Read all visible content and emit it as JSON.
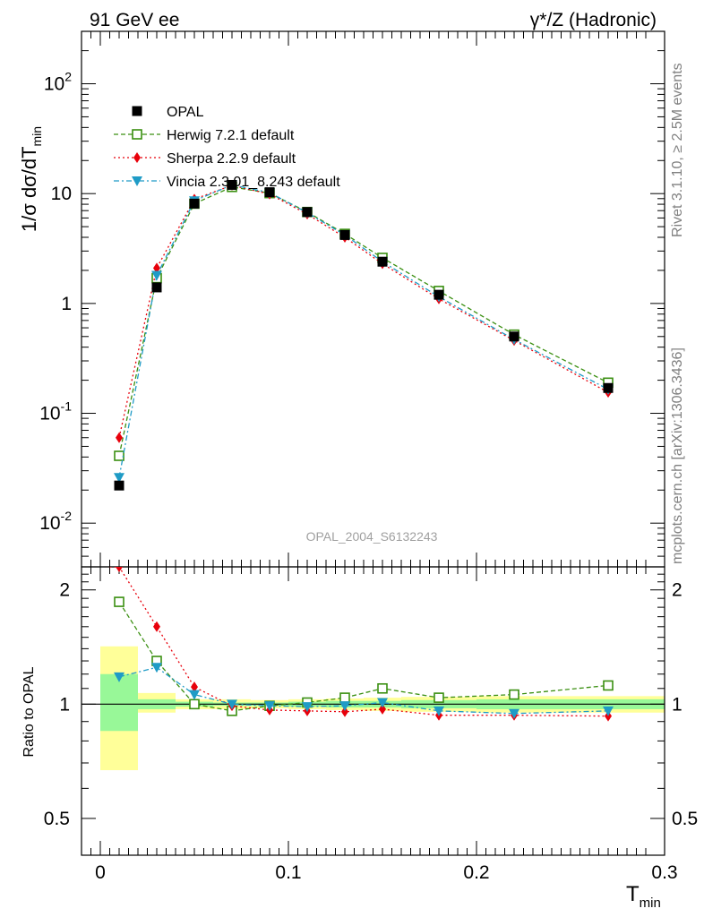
{
  "header": {
    "left": "91 GeV ee",
    "right": "γ*/Z (Hadronic)"
  },
  "side": {
    "rivet": "Rivet 3.1.10, ≥ 2.5M events",
    "mcplots": "mcplots.cern.ch [arXiv:1306.3436]"
  },
  "watermark": "OPAL_2004_S6132243",
  "axes": {
    "ylabel_main": "1/σ dσ/dT",
    "ylabel_main_sub": "min",
    "ylabel_ratio": "Ratio to OPAL",
    "xlabel": "T",
    "xlabel_sub": "min"
  },
  "legend": [
    {
      "label": "OPAL",
      "color": "#000000",
      "marker": "square-filled",
      "line": "none"
    },
    {
      "label": "Herwig 7.2.1 default",
      "color": "#3a8f11",
      "marker": "square-open",
      "line": "dashed"
    },
    {
      "label": "Sherpa 2.2.9 default",
      "color": "#e8000b",
      "marker": "diamond",
      "line": "dotted"
    },
    {
      "label": "Vincia 2.3.01_8.243 default",
      "color": "#1f9bc6",
      "marker": "triangle-down",
      "line": "dashdot"
    }
  ],
  "chart_data": [
    {
      "type": "scatter",
      "panel": "main",
      "xlim": [
        -0.01,
        0.3
      ],
      "ylim": [
        0.004,
        300
      ],
      "log_y": true,
      "x_ticks": [
        "0",
        "0.1",
        "0.2",
        "0.3"
      ],
      "y_ticks": [
        "10^-2",
        "10^-1",
        "1",
        "10",
        "10^2"
      ],
      "series": [
        {
          "name": "OPAL",
          "x": [
            0.01,
            0.03,
            0.05,
            0.07,
            0.09,
            0.11,
            0.13,
            0.15,
            0.18,
            0.22,
            0.27
          ],
          "values": [
            0.022,
            1.4,
            8.1,
            12.0,
            10.3,
            6.8,
            4.2,
            2.4,
            1.2,
            0.5,
            0.17
          ]
        },
        {
          "name": "Herwig 7.2.1 default",
          "x": [
            0.01,
            0.03,
            0.05,
            0.07,
            0.09,
            0.11,
            0.13,
            0.15,
            0.18,
            0.22,
            0.27
          ],
          "values": [
            0.041,
            1.7,
            8.1,
            11.5,
            10.1,
            6.8,
            4.3,
            2.6,
            1.3,
            0.52,
            0.19
          ]
        },
        {
          "name": "Sherpa 2.2.9 default",
          "x": [
            0.01,
            0.03,
            0.05,
            0.07,
            0.09,
            0.11,
            0.13,
            0.15,
            0.18,
            0.22,
            0.27
          ],
          "values": [
            0.06,
            2.1,
            8.9,
            11.9,
            9.9,
            6.5,
            4.0,
            2.3,
            1.1,
            0.46,
            0.155
          ]
        },
        {
          "name": "Vincia 2.3.01_8.243 default",
          "x": [
            0.01,
            0.03,
            0.05,
            0.07,
            0.09,
            0.11,
            0.13,
            0.15,
            0.18,
            0.22,
            0.27
          ],
          "values": [
            0.026,
            1.8,
            8.6,
            12.0,
            10.2,
            6.7,
            4.2,
            2.4,
            1.15,
            0.47,
            0.165
          ]
        }
      ]
    },
    {
      "type": "scatter",
      "panel": "ratio",
      "xlim": [
        -0.01,
        0.3
      ],
      "ylim": [
        0.4,
        2.3
      ],
      "log_y": true,
      "y_ticks": [
        "0.5",
        "1",
        "2"
      ],
      "bands": {
        "edges": [
          0.0,
          0.02,
          0.04,
          0.06,
          0.08,
          0.1,
          0.12,
          0.14,
          0.16,
          0.2,
          0.24,
          0.3
        ],
        "stat_lo": [
          0.85,
          0.97,
          0.985,
          0.99,
          0.99,
          0.985,
          0.98,
          0.98,
          0.975,
          0.97,
          0.97
        ],
        "stat_hi": [
          1.2,
          1.03,
          1.015,
          1.01,
          1.01,
          1.015,
          1.02,
          1.02,
          1.025,
          1.03,
          1.03
        ],
        "total_lo": [
          0.67,
          0.95,
          0.97,
          0.97,
          0.975,
          0.97,
          0.965,
          0.96,
          0.955,
          0.95,
          0.95
        ],
        "total_hi": [
          1.42,
          1.07,
          1.03,
          1.03,
          1.025,
          1.03,
          1.035,
          1.04,
          1.045,
          1.05,
          1.05
        ]
      },
      "series": [
        {
          "name": "Herwig 7.2.1 default",
          "x": [
            0.01,
            0.03,
            0.05,
            0.07,
            0.09,
            0.11,
            0.13,
            0.15,
            0.18,
            0.22,
            0.27
          ],
          "values": [
            1.86,
            1.3,
            1.0,
            0.96,
            0.99,
            1.01,
            1.04,
            1.1,
            1.04,
            1.06,
            1.12
          ]
        },
        {
          "name": "Sherpa 2.2.9 default",
          "x": [
            0.005,
            0.01,
            0.03,
            0.05,
            0.07,
            0.09,
            0.11,
            0.13,
            0.15,
            0.18,
            0.22,
            0.27
          ],
          "values": [
            2.3,
            2.3,
            1.6,
            1.11,
            0.99,
            0.965,
            0.96,
            0.955,
            0.97,
            0.935,
            0.935,
            0.93
          ]
        },
        {
          "name": "Vincia 2.3.01_8.243 default",
          "x": [
            0.01,
            0.03,
            0.05,
            0.07,
            0.09,
            0.11,
            0.13,
            0.15,
            0.18,
            0.22,
            0.27
          ],
          "values": [
            1.18,
            1.25,
            1.06,
            1.0,
            0.99,
            0.985,
            0.99,
            1.01,
            0.96,
            0.945,
            0.96
          ]
        }
      ]
    }
  ]
}
